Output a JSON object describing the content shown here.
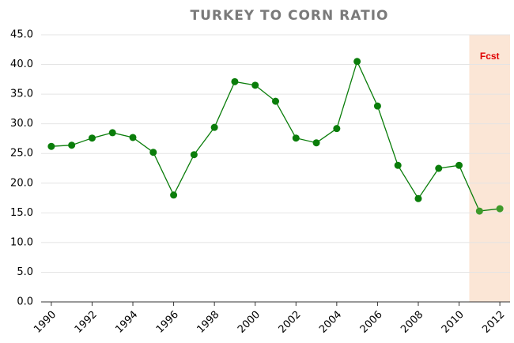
{
  "chart_data": {
    "type": "line",
    "title": "TURKEY TO CORN RATIO",
    "x": [
      1990,
      1991,
      1992,
      1993,
      1994,
      1995,
      1996,
      1997,
      1998,
      1999,
      2000,
      2001,
      2002,
      2003,
      2004,
      2005,
      2006,
      2007,
      2008,
      2009,
      2010,
      2011,
      2012
    ],
    "series": [
      {
        "color": "#0a7d0a",
        "values": [
          26.2,
          26.4,
          27.6,
          28.5,
          27.7,
          25.2,
          18.0,
          24.8,
          29.4,
          37.1,
          36.5,
          33.8,
          27.6,
          26.8,
          29.2,
          40.5,
          33.0,
          23.0,
          17.4,
          22.5,
          23.0,
          15.3,
          15.7
        ]
      }
    ],
    "forecast": {
      "label": "Fcst",
      "x_from": 2010.5,
      "x_to": 2012.5,
      "fill": "#fbe6d6",
      "label_color": "#e00000",
      "point_color": "#3f9a2a"
    },
    "xlim": [
      1989.5,
      2012.5
    ],
    "xticks": [
      1990,
      1992,
      1994,
      1996,
      1998,
      2000,
      2002,
      2004,
      2006,
      2008,
      2010,
      2012
    ],
    "ylim": [
      0,
      45
    ],
    "yticks": [
      {
        "value": 0,
        "label": "0.0"
      },
      {
        "value": 5,
        "label": "5.0"
      },
      {
        "value": 10,
        "label": "10.0"
      },
      {
        "value": 15,
        "label": "15.0"
      },
      {
        "value": 20,
        "label": "20.0"
      },
      {
        "value": 25,
        "label": "25.0"
      },
      {
        "value": 30,
        "label": "30.0"
      },
      {
        "value": 35,
        "label": "35.0"
      },
      {
        "value": 40,
        "label": "40.0"
      },
      {
        "value": 45,
        "label": "45.0"
      }
    ],
    "grid": true
  }
}
